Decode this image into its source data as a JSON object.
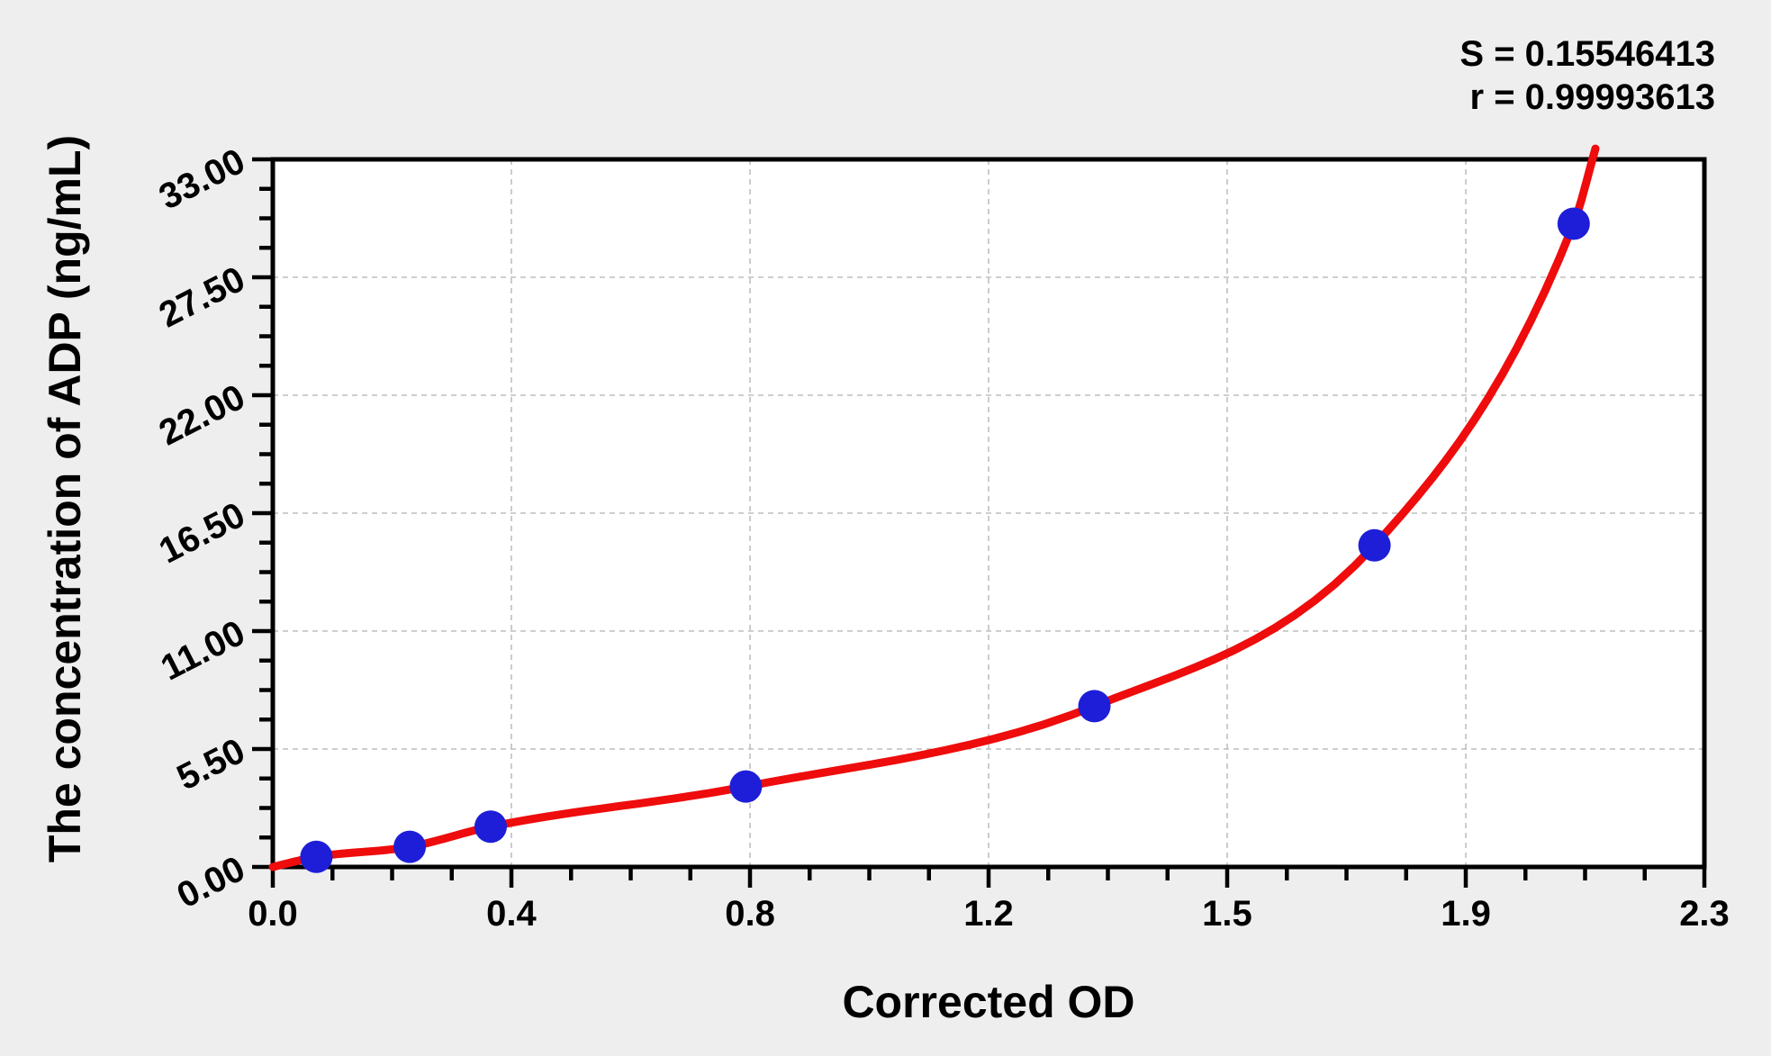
{
  "stats": {
    "s_label": "S = 0.15546413",
    "r_label": "r = 0.99993613"
  },
  "colors": {
    "page_bg": "#eeeeee",
    "plot_bg": "#ffffff",
    "axis": "#000000",
    "grid": "#b0b0b0",
    "point": "#1e1ed8",
    "curve": "#ee0c0c",
    "text": "#000000"
  },
  "chart_data": {
    "type": "scatter",
    "title": "",
    "xlabel": "Corrected OD",
    "ylabel": "The concentration of ADP (ng/mL)",
    "xlim": [
      0,
      2.3
    ],
    "ylim": [
      0,
      33
    ],
    "x_tick_values": [
      0,
      0.3833,
      0.7667,
      1.15,
      1.5333,
      1.9167,
      2.3
    ],
    "x_tick_labels": [
      "0.0",
      "0.4",
      "0.8",
      "1.2",
      "1.5",
      "1.9",
      "2.3"
    ],
    "y_tick_values": [
      0,
      5.5,
      11,
      16.5,
      22,
      27.5,
      33
    ],
    "y_tick_labels": [
      "0.00",
      "5.50",
      "11.00",
      "16.50",
      "22.00",
      "27.50",
      "33.00"
    ],
    "minor_divisions_per_major": 4,
    "grid": {
      "style": "dashed",
      "at": "major_ticks",
      "legend": "none"
    },
    "annotations": [
      "S = 0.15546413",
      "r = 0.99993613"
    ],
    "series": [
      {
        "name": "standard-points",
        "type": "scatter",
        "x": [
          0.07,
          0.22,
          0.35,
          0.76,
          1.32,
          1.77,
          2.09
        ],
        "y": [
          0.47,
          0.94,
          1.88,
          3.75,
          7.5,
          15,
          30
        ]
      },
      {
        "name": "fitted-curve",
        "type": "line",
        "x": [
          0,
          0.07,
          0.22,
          0.35,
          0.76,
          1.32,
          1.77,
          2.09,
          2.125
        ],
        "y": [
          0,
          0.47,
          0.94,
          1.88,
          3.75,
          7.5,
          15,
          30,
          33.5
        ]
      }
    ]
  }
}
